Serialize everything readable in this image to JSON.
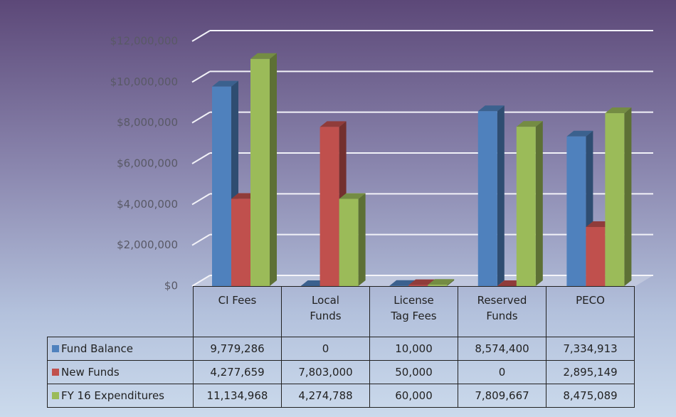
{
  "chart_data": {
    "type": "bar3d",
    "categories": [
      "CI Fees",
      "Local Funds",
      "License Tag Fees",
      "Reserved Funds",
      "PECO"
    ],
    "series": [
      {
        "name": "Fund Balance",
        "color": "#4f81bd",
        "values": [
          9779286,
          0,
          10000,
          8574400,
          7334913
        ],
        "value_labels": [
          "9,779,286",
          "0",
          "10,000",
          "8,574,400",
          "7,334,913"
        ]
      },
      {
        "name": "New Funds",
        "color": "#c0504d",
        "values": [
          4277659,
          7803000,
          50000,
          0,
          2895149
        ],
        "value_labels": [
          "4,277,659",
          "7,803,000",
          "50,000",
          "0",
          "2,895,149"
        ]
      },
      {
        "name": "FY 16 Expenditures",
        "color": "#9bbb59",
        "values": [
          11134968,
          4274788,
          60000,
          7809667,
          8475089
        ],
        "value_labels": [
          "11,134,968",
          "4,274,788",
          "60,000",
          "7,809,667",
          "8,475,089"
        ]
      }
    ],
    "ylim": [
      0,
      12000000
    ],
    "yticks": [
      {
        "value": 0,
        "label": "$0"
      },
      {
        "value": 2000000,
        "label": "$2,000,000"
      },
      {
        "value": 4000000,
        "label": "$4,000,000"
      },
      {
        "value": 6000000,
        "label": "$6,000,000"
      },
      {
        "value": 8000000,
        "label": "$8,000,000"
      },
      {
        "value": 10000000,
        "label": "$10,000,000"
      },
      {
        "value": 12000000,
        "label": "$12,000,000"
      }
    ],
    "grid": true
  }
}
